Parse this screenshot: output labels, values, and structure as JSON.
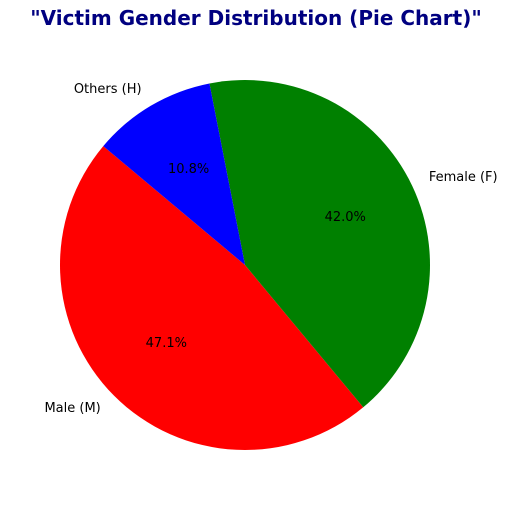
{
  "chart_data": {
    "type": "pie",
    "title": "\"Victim Gender Distribution (Pie Chart)\"",
    "title_color": "#000080",
    "slices": [
      {
        "label": "Male (M)",
        "value": 47.1,
        "pct_label": "47.1%",
        "color": "#ff0000"
      },
      {
        "label": "Female (F)",
        "value": 42.0,
        "pct_label": "42.0%",
        "color": "#008000"
      },
      {
        "label": "Others (H)",
        "value": 10.8,
        "pct_label": "10.8%",
        "color": "#0000ff"
      }
    ],
    "start_angle_deg": 140,
    "direction": "counterclockwise"
  }
}
